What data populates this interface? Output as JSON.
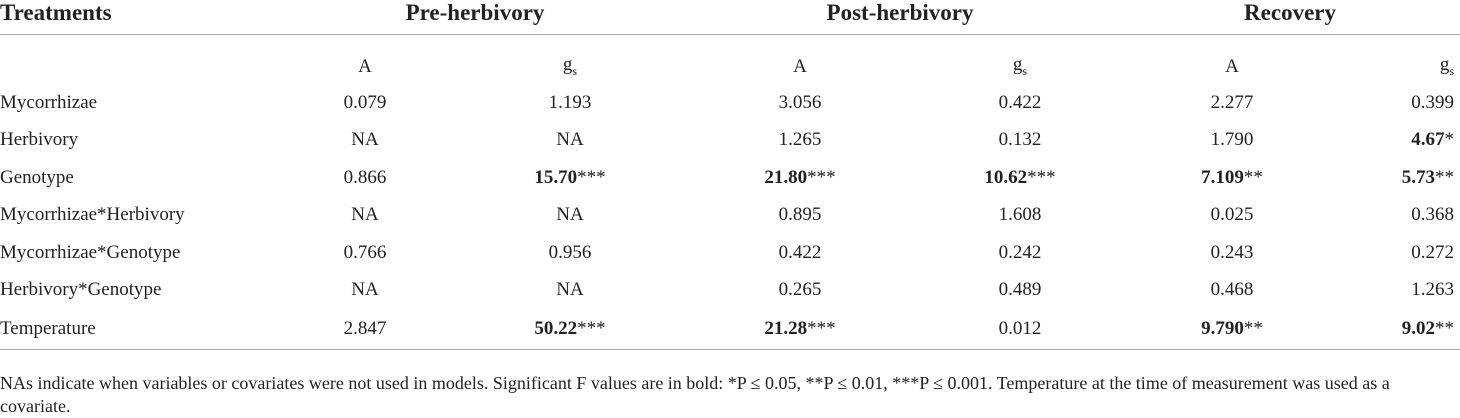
{
  "table": {
    "header": [
      "Treatments",
      "Pre-herbivory",
      "Post-herbivory",
      "Recovery"
    ],
    "subheader": [
      {
        "text": "A"
      },
      {
        "text": "g",
        "sub": "s"
      },
      {
        "text": "A"
      },
      {
        "text": "g",
        "sub": "s"
      },
      {
        "text": "A"
      },
      {
        "text": "g",
        "sub": "s"
      }
    ],
    "rows": [
      {
        "label": "Mycorrhizae",
        "cells": [
          {
            "value": "0.079"
          },
          {
            "value": "1.193"
          },
          {
            "value": "3.056"
          },
          {
            "value": "0.422"
          },
          {
            "value": "2.277"
          },
          {
            "value": "0.399"
          }
        ]
      },
      {
        "label": "Herbivory",
        "cells": [
          {
            "value": "NA"
          },
          {
            "value": "NA"
          },
          {
            "value": "1.265"
          },
          {
            "value": "0.132"
          },
          {
            "value": "1.790"
          },
          {
            "value": "4.67",
            "stars": "*",
            "bold": true
          }
        ]
      },
      {
        "label": "Genotype",
        "cells": [
          {
            "value": "0.866"
          },
          {
            "value": "15.70",
            "stars": "***",
            "bold": true
          },
          {
            "value": "21.80",
            "stars": "***",
            "bold": true
          },
          {
            "value": "10.62",
            "stars": "***",
            "bold": true
          },
          {
            "value": "7.109",
            "stars": "**",
            "bold": true
          },
          {
            "value": "5.73",
            "stars": "**",
            "bold": true
          }
        ]
      },
      {
        "label": "Mycorrhizae*Herbivory",
        "cells": [
          {
            "value": "NA"
          },
          {
            "value": "NA"
          },
          {
            "value": "0.895"
          },
          {
            "value": "1.608"
          },
          {
            "value": "0.025"
          },
          {
            "value": "0.368"
          }
        ]
      },
      {
        "label": "Mycorrhizae*Genotype",
        "cells": [
          {
            "value": "0.766"
          },
          {
            "value": "0.956"
          },
          {
            "value": "0.422"
          },
          {
            "value": "0.242"
          },
          {
            "value": "0.243"
          },
          {
            "value": "0.272"
          }
        ]
      },
      {
        "label": "Herbivory*Genotype",
        "cells": [
          {
            "value": "NA"
          },
          {
            "value": "NA"
          },
          {
            "value": "0.265"
          },
          {
            "value": "0.489"
          },
          {
            "value": "0.468"
          },
          {
            "value": "1.263"
          }
        ]
      },
      {
        "label": "Temperature",
        "cells": [
          {
            "value": "2.847"
          },
          {
            "value": "50.22",
            "stars": "***",
            "bold": true
          },
          {
            "value": "21.28",
            "stars": "***",
            "bold": true
          },
          {
            "value": "0.012"
          },
          {
            "value": "9.790",
            "stars": "**",
            "bold": true
          },
          {
            "value": "9.02",
            "stars": "**",
            "bold": true
          }
        ]
      }
    ],
    "footnote": "NAs indicate when variables or covariates were not used in models. Significant F values are in bold: *P ≤ 0.05, **P ≤ 0.01, ***P ≤ 0.001. Temperature at the time of measurement was used as a covariate."
  }
}
